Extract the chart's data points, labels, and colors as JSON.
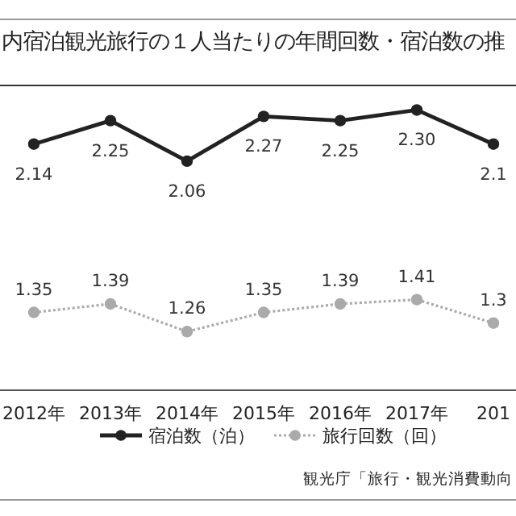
{
  "chart_data": {
    "type": "line",
    "title": "内宿泊観光旅行の１人当たりの年間回数・宿泊数の推",
    "categories": [
      "2012年",
      "2013年",
      "2014年",
      "2015年",
      "2016年",
      "2017年",
      "201"
    ],
    "ylim": [
      1.0,
      2.4
    ],
    "tick_labels": "x",
    "legend": "bottom",
    "marker": "circle",
    "series": [
      {
        "name": "宿泊数（泊）",
        "color": "#222222",
        "line_style": "solid",
        "values": [
          2.14,
          2.25,
          2.06,
          2.27,
          2.25,
          2.3,
          2.14
        ],
        "value_labels": [
          "2.14",
          "2.25",
          "2.06",
          "2.27",
          "2.25",
          "2.30",
          "2.1"
        ]
      },
      {
        "name": "旅行回数（回）",
        "color": "#aaaaaa",
        "line_style": "dotted",
        "values": [
          1.35,
          1.39,
          1.26,
          1.35,
          1.39,
          1.41,
          1.3
        ],
        "value_labels": [
          "1.35",
          "1.39",
          "1.26",
          "1.35",
          "1.39",
          "1.41",
          "1.3"
        ]
      }
    ],
    "annotations": [
      "観光庁「旅行・観光消費動向"
    ]
  }
}
